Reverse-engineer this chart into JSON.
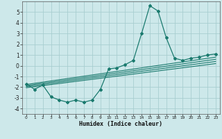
{
  "xlabel": "Humidex (Indice chaleur)",
  "bg_color": "#cde8ea",
  "grid_color": "#a8ced0",
  "line_color": "#1a7a6e",
  "xlim": [
    -0.5,
    23.5
  ],
  "ylim": [
    -4.5,
    6.0
  ],
  "xticks": [
    0,
    1,
    2,
    3,
    4,
    5,
    6,
    7,
    8,
    9,
    10,
    11,
    12,
    13,
    14,
    15,
    16,
    17,
    18,
    19,
    20,
    21,
    22,
    23
  ],
  "yticks": [
    -4,
    -3,
    -2,
    -1,
    0,
    1,
    2,
    3,
    4,
    5
  ],
  "main_curve_x": [
    0,
    1,
    2,
    3,
    4,
    5,
    6,
    7,
    8,
    9,
    10,
    11,
    12,
    13,
    14,
    15,
    16,
    17,
    18,
    19,
    20,
    21,
    22,
    23
  ],
  "main_curve_y": [
    -1.7,
    -2.2,
    -1.8,
    -2.9,
    -3.2,
    -3.4,
    -3.2,
    -3.4,
    -3.2,
    -2.2,
    -0.3,
    -0.2,
    0.1,
    0.5,
    3.0,
    5.6,
    5.1,
    2.6,
    0.7,
    0.5,
    0.7,
    0.8,
    1.0,
    1.1
  ],
  "reg_line1_x": [
    0,
    23
  ],
  "reg_line1_y": [
    -1.75,
    0.8
  ],
  "reg_line2_x": [
    0,
    23
  ],
  "reg_line2_y": [
    -1.85,
    0.6
  ],
  "reg_line3_x": [
    0,
    23
  ],
  "reg_line3_y": [
    -1.95,
    0.4
  ],
  "reg_line4_x": [
    0,
    23
  ],
  "reg_line4_y": [
    -2.05,
    0.2
  ]
}
